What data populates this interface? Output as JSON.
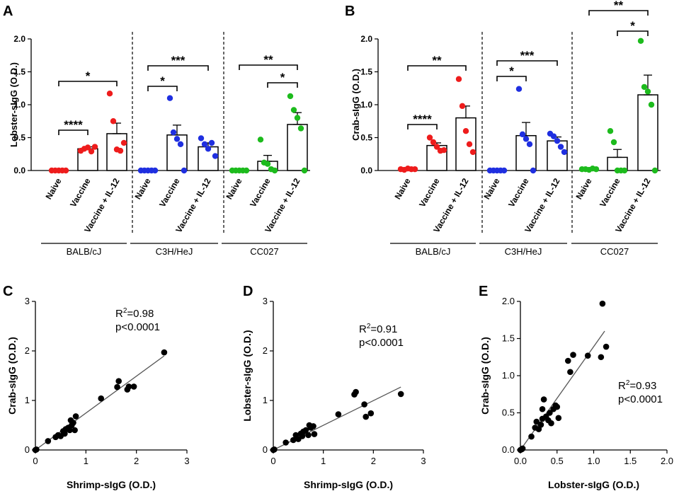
{
  "colors": {
    "balb": "#ee1c1c",
    "c3h": "#1f2fe0",
    "cc027": "#1dbb1d",
    "point": "#000000"
  },
  "chart_data": [
    {
      "panel": "A",
      "type": "bar",
      "ylabel": "Lobster-sIgG (O.D.)",
      "ylim": [
        0,
        2.0
      ],
      "yticks": [
        "0.0",
        "0.5",
        "1.0",
        "1.5",
        "2.0"
      ],
      "categories": [
        "Naive",
        "Vaccine",
        "Vaccine + IL-12"
      ],
      "groups": [
        {
          "strain": "BALB/cJ",
          "color_key": "balb",
          "means": [
            0.0,
            0.33,
            0.56
          ],
          "sem": [
            0.0,
            0.03,
            0.16
          ],
          "points": [
            [
              0,
              0,
              0,
              0,
              0
            ],
            [
              0.3,
              0.33,
              0.35,
              0.29,
              0.36
            ],
            [
              1.17,
              0.75,
              0.32,
              0.3,
              0.42
            ]
          ],
          "sig": [
            {
              "from": 0,
              "to": 1,
              "label": "****"
            },
            {
              "from": 0,
              "to": 2,
              "label": "*"
            }
          ]
        },
        {
          "strain": "C3H/HeJ",
          "color_key": "c3h",
          "means": [
            0.0,
            0.54,
            0.36
          ],
          "sem": [
            0.0,
            0.15,
            0.06
          ],
          "points": [
            [
              0,
              0,
              0,
              0,
              0
            ],
            [
              1.1,
              0.58,
              0.48,
              0.4,
              0.0
            ],
            [
              0.49,
              0.4,
              0.33,
              0.42,
              0.22
            ]
          ],
          "sig": [
            {
              "from": 0,
              "to": 1,
              "label": "*"
            },
            {
              "from": 0,
              "to": 2,
              "label": "***"
            }
          ]
        },
        {
          "strain": "CC027",
          "color_key": "cc027",
          "means": [
            0.0,
            0.14,
            0.7
          ],
          "sem": [
            0.0,
            0.09,
            0.18
          ],
          "points": [
            [
              0,
              0,
              0,
              0,
              0
            ],
            [
              0.47,
              0.12,
              0.1,
              0.02,
              0.0
            ],
            [
              1.13,
              0.92,
              0.8,
              0.64,
              0.0
            ]
          ],
          "sig": [
            {
              "from": 1,
              "to": 2,
              "label": "*"
            },
            {
              "from": 0,
              "to": 2,
              "label": "**"
            }
          ]
        }
      ]
    },
    {
      "panel": "B",
      "type": "bar",
      "ylabel": "Crab-sIgG (O.D.)",
      "ylim": [
        0,
        2.0
      ],
      "yticks": [
        "0.0",
        "0.5",
        "1.0",
        "1.5",
        "2.0"
      ],
      "categories": [
        "Naive",
        "Vaccine",
        "Vaccine + IL-12"
      ],
      "groups": [
        {
          "strain": "BALB/cJ",
          "color_key": "balb",
          "means": [
            0.02,
            0.38,
            0.8
          ],
          "sem": [
            0.005,
            0.04,
            0.18
          ],
          "points": [
            [
              0.02,
              0.01,
              0.03,
              0.02,
              0.02
            ],
            [
              0.5,
              0.43,
              0.36,
              0.3,
              0.31
            ],
            [
              1.39,
              0.98,
              0.6,
              0.4,
              0.28
            ]
          ],
          "sig": [
            {
              "from": 0,
              "to": 1,
              "label": "****"
            },
            {
              "from": 0,
              "to": 2,
              "label": "**"
            }
          ]
        },
        {
          "strain": "C3H/HeJ",
          "color_key": "c3h",
          "means": [
            0.0,
            0.53,
            0.45
          ],
          "sem": [
            0.0,
            0.2,
            0.06
          ],
          "points": [
            [
              0,
              0,
              0,
              0,
              0
            ],
            [
              1.24,
              0.55,
              0.48,
              0.4,
              0.0
            ],
            [
              0.56,
              0.52,
              0.45,
              0.36,
              0.28
            ]
          ],
          "sig": [
            {
              "from": 0,
              "to": 1,
              "label": "*"
            },
            {
              "from": 0,
              "to": 2,
              "label": "***"
            }
          ]
        },
        {
          "strain": "CC027",
          "color_key": "cc027",
          "means": [
            0.02,
            0.2,
            1.15
          ],
          "sem": [
            0.005,
            0.12,
            0.3
          ],
          "points": [
            [
              0.02,
              0.02,
              0.01,
              0.03,
              0.02
            ],
            [
              0.6,
              0.43,
              0.0,
              0.0,
              0.0
            ],
            [
              1.97,
              1.27,
              1.2,
              1.0,
              0.0
            ]
          ],
          "sig": [
            {
              "from": 1,
              "to": 2,
              "label": "*"
            },
            {
              "from": 0,
              "to": 2,
              "label": "**"
            }
          ]
        }
      ]
    },
    {
      "panel": "C",
      "type": "scatter",
      "xlabel": "Shrimp-sIgG (O.D.)",
      "ylabel": "Crab-sIgG (O.D.)",
      "xlim": [
        0,
        3
      ],
      "ylim": [
        0,
        3
      ],
      "xticks": [
        "0",
        "1",
        "2",
        "3"
      ],
      "yticks": [
        "0",
        "1",
        "2",
        "3"
      ],
      "r2_label": "R",
      "r2_value": "=0.98",
      "p_value": "p<0.0001",
      "fit": [
        [
          0.0,
          0.0
        ],
        [
          2.55,
          1.9
        ]
      ],
      "points": [
        [
          0,
          0
        ],
        [
          0.02,
          0.01
        ],
        [
          0.25,
          0.18
        ],
        [
          0.4,
          0.26
        ],
        [
          0.45,
          0.3
        ],
        [
          0.5,
          0.28
        ],
        [
          0.55,
          0.38
        ],
        [
          0.58,
          0.33
        ],
        [
          0.6,
          0.42
        ],
        [
          0.65,
          0.45
        ],
        [
          0.68,
          0.4
        ],
        [
          0.72,
          0.5
        ],
        [
          0.75,
          0.55
        ],
        [
          0.7,
          0.6
        ],
        [
          0.8,
          0.68
        ],
        [
          0.78,
          0.4
        ],
        [
          1.3,
          1.04
        ],
        [
          1.62,
          1.27
        ],
        [
          1.65,
          1.39
        ],
        [
          1.82,
          1.22
        ],
        [
          1.85,
          1.28
        ],
        [
          1.95,
          1.28
        ],
        [
          2.55,
          1.97
        ]
      ]
    },
    {
      "panel": "D",
      "type": "scatter",
      "xlabel": "Shrimp-sIgG (O.D.)",
      "ylabel": "Lobster-sIgG (O.D.)",
      "xlim": [
        0,
        3
      ],
      "ylim": [
        0,
        3
      ],
      "xticks": [
        "0",
        "1",
        "2",
        "3"
      ],
      "yticks": [
        "0",
        "1",
        "2",
        "3"
      ],
      "r2_label": "R",
      "r2_value": "=0.91",
      "p_value": "p<0.0001",
      "fit": [
        [
          0.0,
          0.0
        ],
        [
          2.55,
          1.27
        ]
      ],
      "points": [
        [
          0,
          0
        ],
        [
          0.02,
          0.01
        ],
        [
          0.25,
          0.15
        ],
        [
          0.4,
          0.2
        ],
        [
          0.45,
          0.3
        ],
        [
          0.5,
          0.22
        ],
        [
          0.55,
          0.33
        ],
        [
          0.58,
          0.28
        ],
        [
          0.6,
          0.37
        ],
        [
          0.65,
          0.4
        ],
        [
          0.7,
          0.3
        ],
        [
          0.72,
          0.5
        ],
        [
          0.75,
          0.45
        ],
        [
          0.8,
          0.48
        ],
        [
          0.82,
          0.32
        ],
        [
          1.3,
          0.72
        ],
        [
          1.62,
          1.12
        ],
        [
          1.65,
          1.17
        ],
        [
          1.82,
          0.92
        ],
        [
          1.85,
          0.67
        ],
        [
          1.95,
          0.74
        ],
        [
          2.55,
          1.13
        ]
      ]
    },
    {
      "panel": "E",
      "type": "scatter",
      "xlabel": "Lobster-sIgG (O.D.)",
      "ylabel": "Crab-sIgG (O.D.)",
      "xlim": [
        0,
        2.0
      ],
      "ylim": [
        0,
        2.0
      ],
      "xticks": [
        "0.0",
        "0.5",
        "1.0",
        "1.5",
        "2.0"
      ],
      "yticks": [
        "0.0",
        "0.5",
        "1.0",
        "1.5",
        "2.0"
      ],
      "r2_label": "R",
      "r2_value": "=0.93",
      "p_value": "p<0.0001",
      "fit": [
        [
          0.0,
          0.0
        ],
        [
          1.15,
          1.6
        ]
      ],
      "points": [
        [
          0,
          0
        ],
        [
          0.02,
          0.01
        ],
        [
          0.03,
          0.02
        ],
        [
          0.15,
          0.18
        ],
        [
          0.2,
          0.3
        ],
        [
          0.22,
          0.38
        ],
        [
          0.25,
          0.28
        ],
        [
          0.28,
          0.34
        ],
        [
          0.3,
          0.42
        ],
        [
          0.3,
          0.55
        ],
        [
          0.32,
          0.68
        ],
        [
          0.35,
          0.45
        ],
        [
          0.38,
          0.4
        ],
        [
          0.4,
          0.5
        ],
        [
          0.42,
          0.36
        ],
        [
          0.45,
          0.55
        ],
        [
          0.48,
          0.6
        ],
        [
          0.5,
          0.58
        ],
        [
          0.52,
          0.43
        ],
        [
          0.65,
          1.2
        ],
        [
          0.68,
          1.05
        ],
        [
          0.72,
          1.28
        ],
        [
          0.92,
          1.27
        ],
        [
          1.1,
          1.25
        ],
        [
          1.12,
          1.97
        ],
        [
          1.17,
          1.39
        ]
      ]
    }
  ],
  "panel_labels": [
    "A",
    "B",
    "C",
    "D",
    "E"
  ],
  "superscript": "2"
}
